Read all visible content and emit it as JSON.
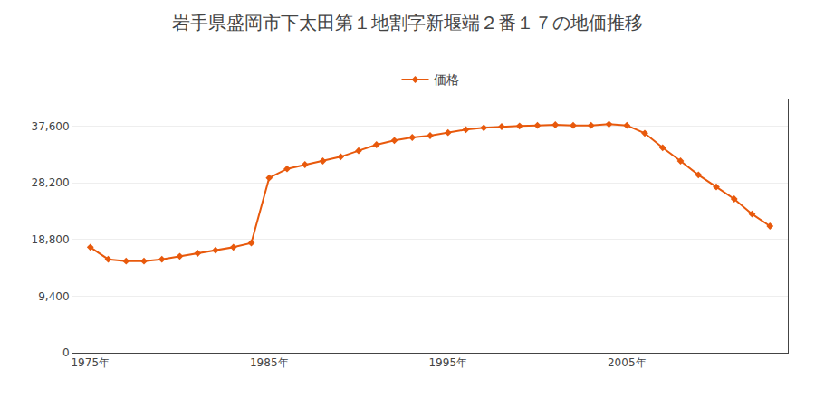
{
  "chart_data": {
    "type": "line",
    "title": "岩手県盛岡市下太田第１地割字新堰端２番１７の地価推移",
    "x": [
      1975,
      1976,
      1977,
      1978,
      1979,
      1980,
      1981,
      1982,
      1983,
      1984,
      1985,
      1986,
      1987,
      1988,
      1989,
      1990,
      1991,
      1992,
      1993,
      1994,
      1995,
      1996,
      1997,
      1998,
      1999,
      2000,
      2001,
      2002,
      2003,
      2004,
      2005,
      2006,
      2007,
      2008,
      2009,
      2010,
      2011,
      2012,
      2013
    ],
    "series": [
      {
        "name": "価格",
        "color": "#e8590c",
        "marker": "diamond",
        "values": [
          17500,
          15500,
          15200,
          15200,
          15500,
          16000,
          16500,
          17000,
          17500,
          18200,
          29000,
          30500,
          31200,
          31800,
          32500,
          33500,
          34500,
          35200,
          35700,
          36000,
          36500,
          37000,
          37300,
          37500,
          37600,
          37700,
          37800,
          37700,
          37700,
          37900,
          37700,
          36400,
          34000,
          31800,
          29500,
          27500,
          25500,
          23000,
          21000
        ]
      }
    ],
    "xlim": [
      1974,
      2014
    ],
    "xticks": [
      {
        "value": 1975,
        "label": "1975年"
      },
      {
        "value": 1985,
        "label": "1985年"
      },
      {
        "value": 1995,
        "label": "1995年"
      },
      {
        "value": 2005,
        "label": "2005年"
      }
    ],
    "ylim": [
      0,
      42000
    ],
    "yticks": [
      0,
      {
        "value": 9400,
        "label": "9,400"
      },
      {
        "value": 18800,
        "label": "18,800"
      },
      {
        "value": 28200,
        "label": "28,200"
      },
      {
        "value": 37600,
        "label": "37,600"
      }
    ],
    "grid": true,
    "legend": "top"
  }
}
